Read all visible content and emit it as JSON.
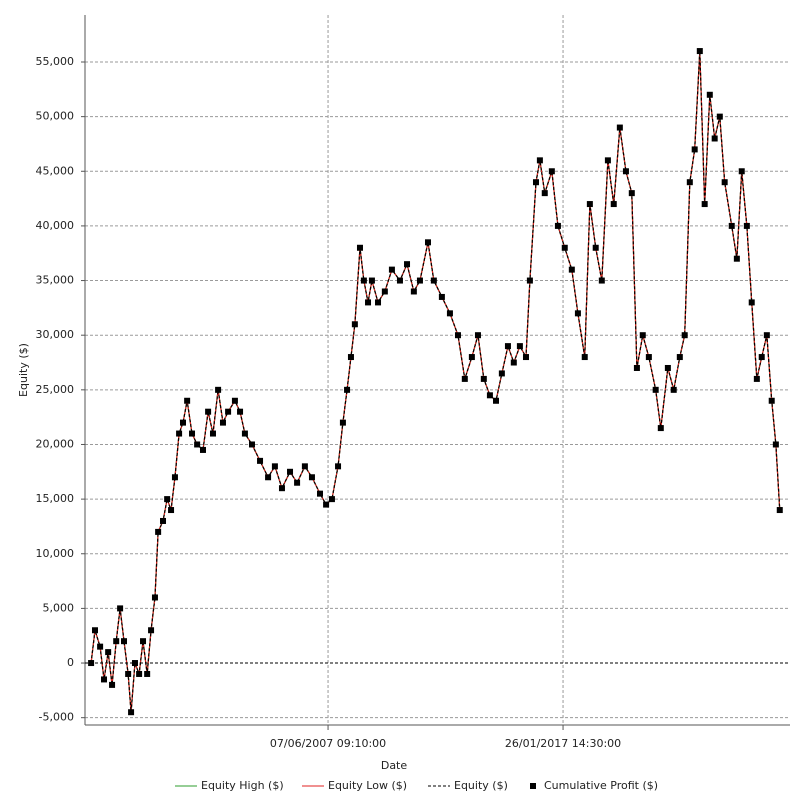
{
  "chart_data": {
    "type": "line",
    "xlabel": "Date",
    "ylabel": "Equity ($)",
    "xlim": [
      1997.46,
      2026.38
    ],
    "ylim": [
      -5670,
      59300
    ],
    "xticks": [
      {
        "value": 2007.43,
        "label": "07/06/2007 09:10:00"
      },
      {
        "value": 2017.07,
        "label": "26/01/2017 14:30:00"
      }
    ],
    "yticks": [
      {
        "value": -5000,
        "label": "-5,000"
      },
      0,
      {
        "value": 5000,
        "label": "5,000"
      },
      {
        "value": 10000,
        "label": "10,000"
      },
      {
        "value": 15000,
        "label": "15,000"
      },
      {
        "value": 20000,
        "label": "20,000"
      },
      {
        "value": 25000,
        "label": "25,000"
      },
      {
        "value": 30000,
        "label": "30,000"
      },
      {
        "value": 35000,
        "label": "35,000"
      },
      {
        "value": 40000,
        "label": "40,000"
      },
      {
        "value": 45000,
        "label": "45,000"
      },
      {
        "value": 50000,
        "label": "50,000"
      },
      {
        "value": 55000,
        "label": "55,000"
      }
    ],
    "grid": true,
    "x": [
      1997.71,
      1997.87,
      1998.08,
      1998.24,
      1998.41,
      1998.57,
      1998.74,
      1998.9,
      1999.06,
      1999.23,
      1999.35,
      1999.51,
      1999.68,
      1999.84,
      2000.01,
      2000.17,
      2000.33,
      2000.46,
      2000.66,
      2000.83,
      2000.99,
      2001.15,
      2001.32,
      2001.48,
      2001.65,
      2001.85,
      2002.06,
      2002.3,
      2002.51,
      2002.71,
      2002.92,
      2003.12,
      2003.33,
      2003.61,
      2003.82,
      2004.02,
      2004.31,
      2004.64,
      2004.97,
      2005.25,
      2005.54,
      2005.87,
      2006.16,
      2006.48,
      2006.77,
      2007.1,
      2007.35,
      2007.59,
      2007.84,
      2008.04,
      2008.21,
      2008.37,
      2008.53,
      2008.74,
      2008.9,
      2009.07,
      2009.23,
      2009.48,
      2009.76,
      2010.05,
      2010.38,
      2010.67,
      2010.95,
      2011.2,
      2011.53,
      2011.77,
      2012.1,
      2012.43,
      2012.76,
      2013.04,
      2013.33,
      2013.58,
      2013.82,
      2014.07,
      2014.32,
      2014.56,
      2014.81,
      2015.05,
      2015.3,
      2015.55,
      2015.71,
      2015.96,
      2016.12,
      2016.32,
      2016.61,
      2016.86,
      2017.14,
      2017.43,
      2017.68,
      2017.96,
      2018.17,
      2018.41,
      2018.66,
      2018.91,
      2019.15,
      2019.4,
      2019.65,
      2019.89,
      2020.1,
      2020.34,
      2020.59,
      2020.87,
      2021.08,
      2021.37,
      2021.61,
      2021.86,
      2022.06,
      2022.27,
      2022.47,
      2022.68,
      2022.88,
      2023.09,
      2023.29,
      2023.5,
      2023.7,
      2023.99,
      2024.2,
      2024.4,
      2024.61,
      2024.81,
      2025.02,
      2025.22,
      2025.43,
      2025.63,
      2025.8,
      2025.96
    ],
    "series": [
      {
        "name": "Equity High ($)",
        "color": "#2e9e2e",
        "values": [
          0,
          3000,
          1500,
          -1500,
          1000,
          -2000,
          2000,
          5000,
          2000,
          -1000,
          -4500,
          0,
          -1000,
          2000,
          -1000,
          3000,
          6000,
          12000,
          13000,
          15000,
          14000,
          17000,
          21000,
          22000,
          24000,
          21000,
          20000,
          19500,
          23000,
          21000,
          25000,
          22000,
          23000,
          24000,
          23000,
          21000,
          20000,
          18500,
          17000,
          18000,
          16000,
          17500,
          16500,
          18000,
          17000,
          15500,
          14500,
          15000,
          18000,
          22000,
          25000,
          28000,
          31000,
          38000,
          35000,
          33000,
          35000,
          33000,
          34000,
          36000,
          35000,
          36500,
          34000,
          35000,
          38500,
          35000,
          33500,
          32000,
          30000,
          26000,
          28000,
          30000,
          26000,
          24500,
          24000,
          26500,
          29000,
          27500,
          29000,
          28000,
          35000,
          44000,
          46000,
          43000,
          45000,
          40000,
          38000,
          36000,
          32000,
          28000,
          42000,
          38000,
          35000,
          46000,
          42000,
          49000,
          45000,
          43000,
          27000,
          30000,
          28000,
          25000,
          21500,
          27000,
          25000,
          28000,
          30000,
          44000,
          47000,
          56000,
          42000,
          52000,
          48000,
          50000,
          44000,
          40000,
          37000,
          45000,
          40000,
          33000,
          26000,
          28000,
          30000,
          24000,
          20000,
          14000
        ]
      },
      {
        "name": "Equity Low ($)",
        "color": "#e02020",
        "values": [
          0,
          3000,
          1500,
          -1500,
          1000,
          -2000,
          2000,
          5000,
          2000,
          -1000,
          -4500,
          0,
          -1000,
          2000,
          -1000,
          3000,
          6000,
          12000,
          13000,
          15000,
          14000,
          17000,
          21000,
          22000,
          24000,
          21000,
          20000,
          19500,
          23000,
          21000,
          25000,
          22000,
          23000,
          24000,
          23000,
          21000,
          20000,
          18500,
          17000,
          18000,
          16000,
          17500,
          16500,
          18000,
          17000,
          15500,
          14500,
          15000,
          18000,
          22000,
          25000,
          28000,
          31000,
          38000,
          35000,
          33000,
          35000,
          33000,
          34000,
          36000,
          35000,
          36500,
          34000,
          35000,
          38500,
          35000,
          33500,
          32000,
          30000,
          26000,
          28000,
          30000,
          26000,
          24500,
          24000,
          26500,
          29000,
          27500,
          29000,
          28000,
          35000,
          44000,
          46000,
          43000,
          45000,
          40000,
          38000,
          36000,
          32000,
          28000,
          42000,
          38000,
          35000,
          46000,
          42000,
          49000,
          45000,
          43000,
          27000,
          30000,
          28000,
          25000,
          21500,
          27000,
          25000,
          28000,
          30000,
          44000,
          47000,
          56000,
          42000,
          52000,
          48000,
          50000,
          44000,
          40000,
          37000,
          45000,
          40000,
          33000,
          26000,
          28000,
          30000,
          24000,
          20000,
          14000
        ]
      },
      {
        "name": "Equity ($)",
        "color": "#000000",
        "dash": true,
        "values": [
          0,
          3000,
          1500,
          -1500,
          1000,
          -2000,
          2000,
          5000,
          2000,
          -1000,
          -4500,
          0,
          -1000,
          2000,
          -1000,
          3000,
          6000,
          12000,
          13000,
          15000,
          14000,
          17000,
          21000,
          22000,
          24000,
          21000,
          20000,
          19500,
          23000,
          21000,
          25000,
          22000,
          23000,
          24000,
          23000,
          21000,
          20000,
          18500,
          17000,
          18000,
          16000,
          17500,
          16500,
          18000,
          17000,
          15500,
          14500,
          15000,
          18000,
          22000,
          25000,
          28000,
          31000,
          38000,
          35000,
          33000,
          35000,
          33000,
          34000,
          36000,
          35000,
          36500,
          34000,
          35000,
          38500,
          35000,
          33500,
          32000,
          30000,
          26000,
          28000,
          30000,
          26000,
          24500,
          24000,
          26500,
          29000,
          27500,
          29000,
          28000,
          35000,
          44000,
          46000,
          43000,
          45000,
          40000,
          38000,
          36000,
          32000,
          28000,
          42000,
          38000,
          35000,
          46000,
          42000,
          49000,
          45000,
          43000,
          27000,
          30000,
          28000,
          25000,
          21500,
          27000,
          25000,
          28000,
          30000,
          44000,
          47000,
          56000,
          42000,
          52000,
          48000,
          50000,
          44000,
          40000,
          37000,
          45000,
          40000,
          33000,
          26000,
          28000,
          30000,
          24000,
          20000,
          14000
        ]
      },
      {
        "name": "Cumulative Profit ($)",
        "color": "#000000",
        "marker": "square",
        "values": [
          0,
          3000,
          1500,
          -1500,
          1000,
          -2000,
          2000,
          5000,
          2000,
          -1000,
          -4500,
          0,
          -1000,
          2000,
          -1000,
          3000,
          6000,
          12000,
          13000,
          15000,
          14000,
          17000,
          21000,
          22000,
          24000,
          21000,
          20000,
          19500,
          23000,
          21000,
          25000,
          22000,
          23000,
          24000,
          23000,
          21000,
          20000,
          18500,
          17000,
          18000,
          16000,
          17500,
          16500,
          18000,
          17000,
          15500,
          14500,
          15000,
          18000,
          22000,
          25000,
          28000,
          31000,
          38000,
          35000,
          33000,
          35000,
          33000,
          34000,
          36000,
          35000,
          36500,
          34000,
          35000,
          38500,
          35000,
          33500,
          32000,
          30000,
          26000,
          28000,
          30000,
          26000,
          24500,
          24000,
          26500,
          29000,
          27500,
          29000,
          28000,
          35000,
          44000,
          46000,
          43000,
          45000,
          40000,
          38000,
          36000,
          32000,
          28000,
          42000,
          38000,
          35000,
          46000,
          42000,
          49000,
          45000,
          43000,
          27000,
          30000,
          28000,
          25000,
          21500,
          27000,
          25000,
          28000,
          30000,
          44000,
          47000,
          56000,
          42000,
          52000,
          48000,
          50000,
          44000,
          40000,
          37000,
          45000,
          40000,
          33000,
          26000,
          28000,
          30000,
          24000,
          20000,
          14000
        ]
      }
    ]
  }
}
